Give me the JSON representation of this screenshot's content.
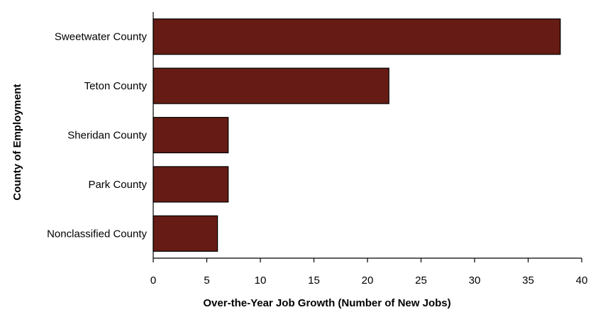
{
  "chart_data": {
    "type": "bar",
    "orientation": "horizontal",
    "categories": [
      "Sweetwater County",
      "Teton County",
      "Sheridan County",
      "Park County",
      "Nonclassified County"
    ],
    "values": [
      38,
      22,
      7,
      7,
      6
    ],
    "xlabel": "Over-the-Year Job Growth (Number of New Jobs)",
    "ylabel": "County of Employment",
    "xlim": [
      0,
      40
    ],
    "xticks": [
      0,
      5,
      10,
      15,
      20,
      25,
      30,
      35,
      40
    ],
    "grid": false,
    "bar_color": "#661c14"
  }
}
